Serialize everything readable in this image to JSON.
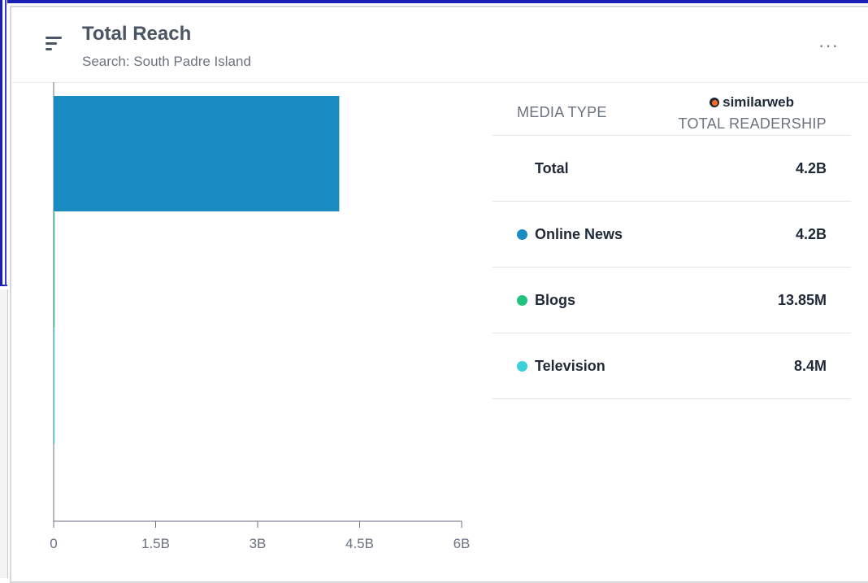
{
  "widget": {
    "title": "Total Reach",
    "subtitle": "Search: South Padre Island",
    "more_icon": "more-horizontal-icon",
    "menu_icon": "sort-lines-icon"
  },
  "table": {
    "col_media": "MEDIA TYPE",
    "brand": "similarweb",
    "col_readership": "TOTAL READERSHIP",
    "rows": [
      {
        "label": "Total",
        "value": "4.2B",
        "color": ""
      },
      {
        "label": "Online News",
        "value": "4.2B",
        "color": "#1a8bc0"
      },
      {
        "label": "Blogs",
        "value": "13.85M",
        "color": "#20c27d"
      },
      {
        "label": "Television",
        "value": "8.4M",
        "color": "#3bd1d6"
      }
    ]
  },
  "chart_data": {
    "type": "bar",
    "orientation": "horizontal",
    "categories": [
      "Online News",
      "Blogs",
      "Television"
    ],
    "values": [
      4200000000,
      13850000,
      8400000
    ],
    "colors": [
      "#1a8bc0",
      "#20c27d",
      "#3bd1d6"
    ],
    "xlim": [
      0,
      6000000000
    ],
    "xticks": [
      0,
      1500000000,
      3000000000,
      4500000000,
      6000000000
    ],
    "xtick_labels": [
      "0",
      "1.5B",
      "3B",
      "4.5B",
      "6B"
    ],
    "grid": false
  }
}
